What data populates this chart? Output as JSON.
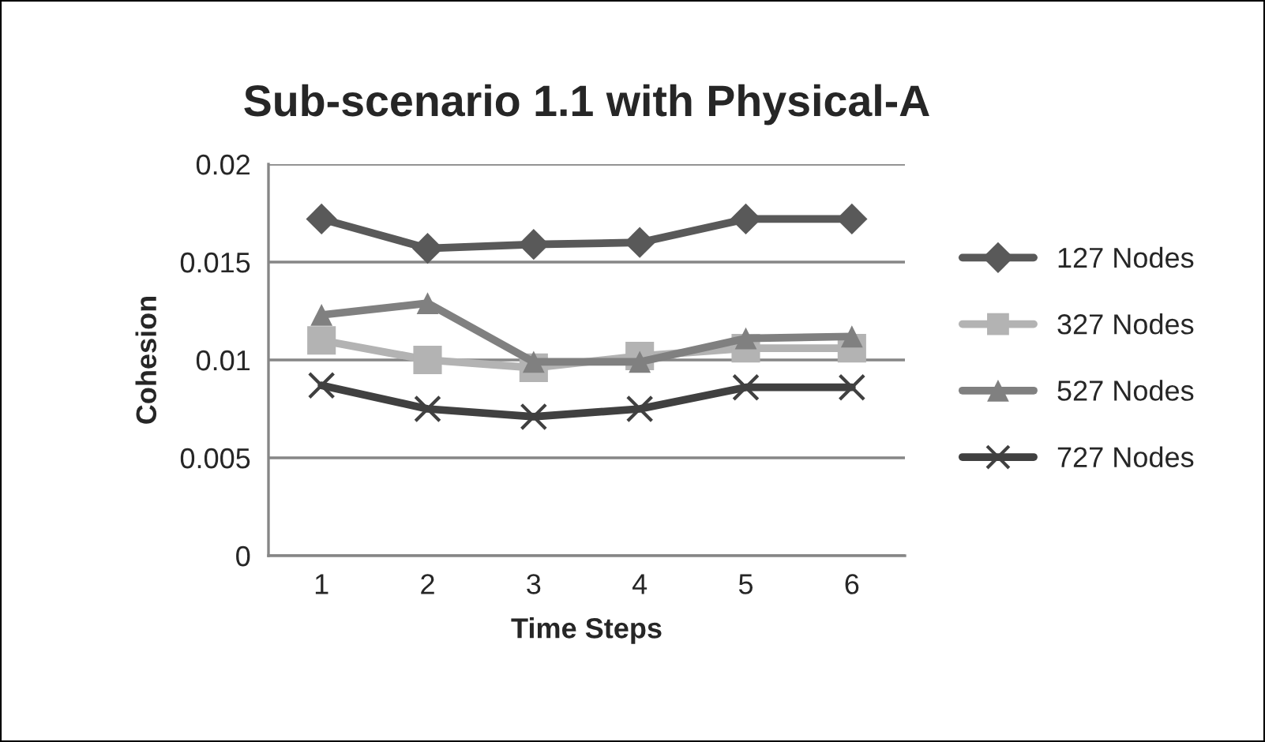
{
  "chart_data": {
    "type": "line",
    "title": "Sub-scenario 1.1 with Physical-A",
    "xlabel": "Time Steps",
    "ylabel": "Cohesion",
    "categories": [
      "1",
      "2",
      "3",
      "4",
      "5",
      "6"
    ],
    "series": [
      {
        "name": "127 Nodes",
        "color": "#595959",
        "marker": "diamond",
        "values": [
          0.0172,
          0.0157,
          0.0159,
          0.016,
          0.0172,
          0.0172
        ]
      },
      {
        "name": "327 Nodes",
        "color": "#b3b3b3",
        "marker": "square",
        "values": [
          0.011,
          0.01,
          0.0096,
          0.0102,
          0.0106,
          0.0106
        ]
      },
      {
        "name": "527 Nodes",
        "color": "#808080",
        "marker": "triangle",
        "values": [
          0.0123,
          0.0129,
          0.0099,
          0.0099,
          0.0111,
          0.0112
        ]
      },
      {
        "name": "727 Nodes",
        "color": "#404040",
        "marker": "cross",
        "values": [
          0.0087,
          0.0075,
          0.0071,
          0.0075,
          0.0086,
          0.0086
        ]
      }
    ],
    "ylim": [
      0,
      0.02
    ],
    "yticks": [
      0,
      0.005,
      0.01,
      0.015,
      0.02
    ],
    "grid": "y",
    "legend": "right"
  }
}
